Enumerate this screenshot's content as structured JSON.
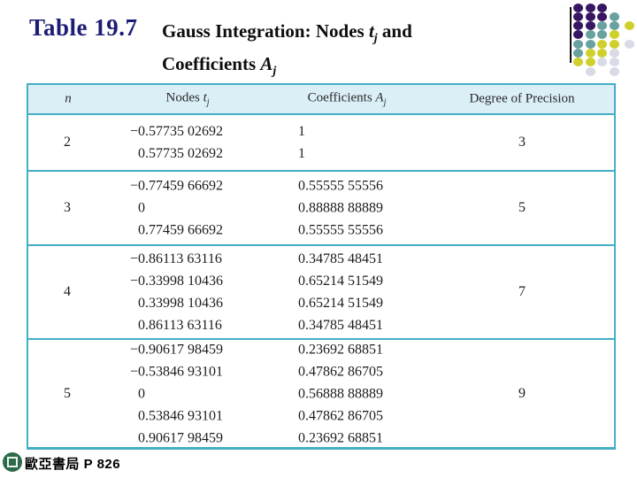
{
  "title": {
    "table_label": "Table 19.7",
    "line1_prefix": "Gauss Integration: Nodes ",
    "line1_var": "t",
    "line1_sub": "j",
    "line1_suffix": " and",
    "line2_prefix": "Coefficients ",
    "line2_var": "A",
    "line2_sub": "j"
  },
  "table": {
    "headers": [
      {
        "segments": [
          {
            "t": "n",
            "s": "i"
          }
        ]
      },
      {
        "segments": [
          {
            "t": "Nodes ",
            "s": ""
          },
          {
            "t": "t",
            "s": "i"
          },
          {
            "t": "j",
            "s": "sub"
          }
        ]
      },
      {
        "segments": [
          {
            "t": "Coefficients ",
            "s": ""
          },
          {
            "t": "A",
            "s": "i"
          },
          {
            "t": "j",
            "s": "sub"
          }
        ]
      },
      {
        "segments": [
          {
            "t": "Degree of Precision",
            "s": ""
          }
        ]
      }
    ],
    "groups": [
      {
        "n": "2",
        "nodes": [
          "−0.57735 02692",
          "0.57735 02692"
        ],
        "coeffs": [
          "1",
          "1"
        ],
        "degree": "3"
      },
      {
        "n": "3",
        "nodes": [
          "−0.77459 66692",
          "0",
          "0.77459 66692"
        ],
        "coeffs": [
          "0.55555 55556",
          "0.88888 88889",
          "0.55555 55556"
        ],
        "degree": "5"
      },
      {
        "n": "4",
        "nodes": [
          "−0.86113 63116",
          "−0.33998 10436",
          "0.33998 10436",
          "0.86113 63116"
        ],
        "coeffs": [
          "0.34785 48451",
          "0.65214 51549",
          "0.65214 51549",
          "0.34785 48451"
        ],
        "degree": "7"
      },
      {
        "n": "5",
        "nodes": [
          "−0.90617 98459",
          "−0.53846 93101",
          "0",
          "0.53846 93101",
          "0.90617 98459"
        ],
        "coeffs": [
          "0.23692 68851",
          "0.47862 86705",
          "0.56888 88889",
          "0.47862 86705",
          "0.23692 68851"
        ],
        "degree": "9"
      }
    ]
  },
  "chart_data": {
    "type": "table",
    "title": "Table 19.7 Gauss Integration: Nodes tj and Coefficients Aj",
    "columns": [
      "n",
      "Nodes tj",
      "Coefficients Aj",
      "Degree of Precision"
    ],
    "rows": [
      [
        2,
        "−0.57735 02692, 0.57735 02692",
        "1, 1",
        3
      ],
      [
        3,
        "−0.77459 66692, 0, 0.77459 66692",
        "0.55555 55556, 0.88888 88889, 0.55555 55556",
        5
      ],
      [
        4,
        "−0.86113 63116, −0.33998 10436, 0.33998 10436, 0.86113 63116",
        "0.34785 48451, 0.65214 51549, 0.65214 51549, 0.34785 48451",
        7
      ],
      [
        5,
        "−0.90617 98459, −0.53846 93101, 0, 0.53846 93101, 0.90617 98459",
        "0.23692 68851, 0.47862 86705, 0.56888 88889, 0.47862 86705, 0.23692 68851",
        9
      ]
    ]
  },
  "decor": {
    "rows": [
      {
        "y": 4,
        "dots": [
          [
            1,
            "purple"
          ],
          [
            2,
            "purple"
          ],
          [
            3,
            "purple"
          ]
        ]
      },
      {
        "y": 14,
        "dots": [
          [
            1,
            "purple"
          ],
          [
            2,
            "purple"
          ],
          [
            3,
            "purple"
          ],
          [
            4,
            "teal"
          ]
        ]
      },
      {
        "y": 24,
        "dots": [
          [
            1,
            "purple"
          ],
          [
            2,
            "purple"
          ],
          [
            3,
            "teal"
          ],
          [
            4,
            "teal"
          ],
          [
            5,
            "yellow"
          ]
        ]
      },
      {
        "y": 34,
        "dots": [
          [
            1,
            "purple"
          ],
          [
            2,
            "teal"
          ],
          [
            3,
            "teal"
          ],
          [
            4,
            "yellow"
          ]
        ]
      },
      {
        "y": 45,
        "dots": [
          [
            1,
            "teal"
          ],
          [
            2,
            "teal"
          ],
          [
            3,
            "yellow"
          ],
          [
            4,
            "yellow"
          ],
          [
            5,
            "gray"
          ]
        ]
      },
      {
        "y": 55,
        "dots": [
          [
            1,
            "teal"
          ],
          [
            2,
            "yellow"
          ],
          [
            3,
            "yellow"
          ],
          [
            4,
            "gray"
          ]
        ]
      },
      {
        "y": 65,
        "dots": [
          [
            1,
            "yellow"
          ],
          [
            2,
            "yellow"
          ],
          [
            3,
            "gray"
          ],
          [
            4,
            "gray"
          ]
        ]
      },
      {
        "y": 76,
        "dots": [
          [
            2,
            "gray"
          ],
          [
            4,
            "gray"
          ]
        ]
      }
    ]
  },
  "colors": {
    "purple": "#371663",
    "teal": "#68a19f",
    "yellow": "#d0d02c",
    "gray": "#d8dae5",
    "table_border": "#43afc6",
    "header_bg": "#dbeff7",
    "title_navy": "#1d1d76",
    "logo_green": "#2d6b4b"
  },
  "footer": {
    "text": "歐亞書局 P 826"
  }
}
